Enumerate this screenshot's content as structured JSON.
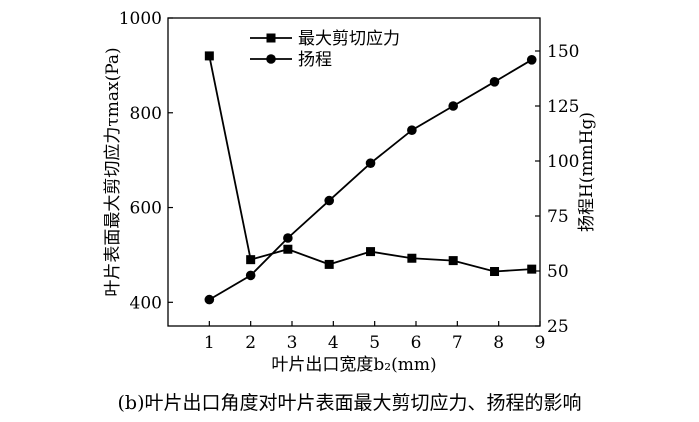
{
  "chart_data": {
    "type": "line",
    "x_axis": {
      "label": "叶片出口宽度b₂(mm)",
      "range": [
        0,
        9.0
      ],
      "ticks": [
        "1",
        "2",
        "3",
        "4",
        "5",
        "6",
        "7",
        "8",
        "9"
      ],
      "tick_values": [
        1,
        2,
        3,
        4,
        5,
        6,
        7,
        8,
        9
      ]
    },
    "y_left": {
      "label": "叶片表面最大剪切应力τmax(Pa)",
      "range": [
        350,
        1000
      ],
      "ticks": [
        "400",
        "600",
        "800",
        "1000"
      ],
      "tick_values": [
        400,
        600,
        800,
        1000
      ]
    },
    "y_right": {
      "label": "扬程H(mmHg)",
      "range": [
        25,
        165
      ],
      "ticks": [
        "25",
        "50",
        "75",
        "100",
        "125",
        "150"
      ],
      "tick_values": [
        25,
        50,
        75,
        100,
        125,
        150
      ]
    },
    "legend_position": "top",
    "grid": false,
    "series": [
      {
        "name": "最大剪切应力",
        "axis": "left",
        "marker": "square",
        "x": [
          1,
          2,
          2.9,
          3.9,
          4.9,
          5.9,
          6.9,
          7.9,
          8.8
        ],
        "y": [
          920,
          490,
          512,
          480,
          507,
          493,
          488,
          465,
          470
        ]
      },
      {
        "name": "扬程",
        "axis": "right",
        "marker": "circle",
        "x": [
          1,
          2,
          2.9,
          3.9,
          4.9,
          5.9,
          6.9,
          7.9,
          8.8
        ],
        "y": [
          37,
          48,
          65,
          82,
          99,
          114,
          125,
          136,
          146
        ]
      }
    ]
  },
  "caption": "(b)叶片出口角度对叶片表面最大剪切应力、扬程的影响"
}
